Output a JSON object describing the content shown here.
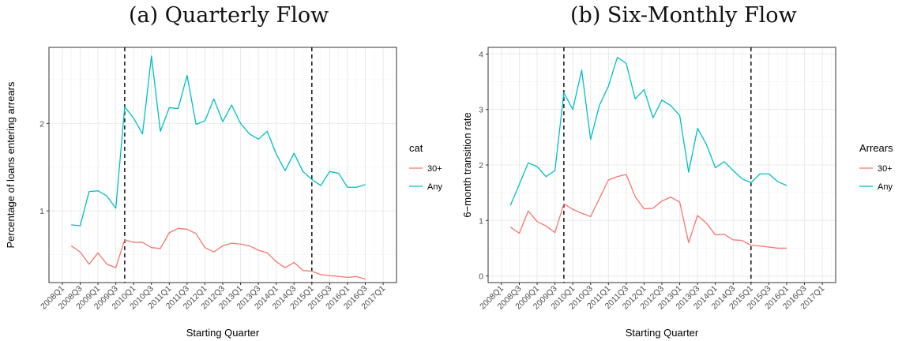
{
  "titles": {
    "a": "(a) Quarterly Flow",
    "b": "(b) Six-Monthly Flow"
  },
  "colors": {
    "30+": "#F8766D",
    "Any": "#00BFC4",
    "vline": "#000000",
    "grid_major": "#ebebeb",
    "grid_minor": "#f4f4f4"
  },
  "chart_data": [
    {
      "type": "line",
      "title": "(a) Quarterly Flow",
      "xlabel": "Starting Quarter",
      "ylabel": "Percentage of loans entering arrears",
      "x_ticks": [
        "2008Q1",
        "2008Q3",
        "2009Q1",
        "2009Q3",
        "2010Q1",
        "2010Q3",
        "2011Q1",
        "2011Q3",
        "2012Q1",
        "2012Q3",
        "2013Q1",
        "2013Q3",
        "2014Q1",
        "2014Q3",
        "2015Q1",
        "2015Q3",
        "2016Q1",
        "2016Q3",
        "2017Q1"
      ],
      "y_ticks": [
        1,
        2
      ],
      "ylim": [
        0.18,
        2.87
      ],
      "grid": true,
      "vlines": [
        "2009Q4",
        "2015Q1"
      ],
      "legend": {
        "title": "cat",
        "position": "right",
        "entries": [
          "30+",
          "Any"
        ]
      },
      "x": [
        "2008Q2",
        "2008Q3",
        "2008Q4",
        "2009Q1",
        "2009Q2",
        "2009Q3",
        "2009Q4",
        "2010Q1",
        "2010Q2",
        "2010Q3",
        "2010Q4",
        "2011Q1",
        "2011Q2",
        "2011Q3",
        "2011Q4",
        "2012Q1",
        "2012Q2",
        "2012Q3",
        "2012Q4",
        "2013Q1",
        "2013Q2",
        "2013Q3",
        "2013Q4",
        "2014Q1",
        "2014Q2",
        "2014Q3",
        "2014Q4",
        "2015Q1",
        "2015Q2",
        "2015Q3",
        "2015Q4",
        "2016Q1",
        "2016Q2",
        "2016Q3"
      ],
      "series": [
        {
          "name": "30+",
          "values": [
            0.6,
            0.53,
            0.39,
            0.52,
            0.39,
            0.35,
            0.67,
            0.64,
            0.64,
            0.58,
            0.57,
            0.75,
            0.8,
            0.79,
            0.74,
            0.58,
            0.53,
            0.6,
            0.63,
            0.62,
            0.6,
            0.55,
            0.52,
            0.42,
            0.35,
            0.41,
            0.32,
            0.31,
            0.27,
            0.26,
            0.25,
            0.24,
            0.25,
            0.22
          ]
        },
        {
          "name": "Any",
          "values": [
            0.84,
            0.83,
            1.22,
            1.23,
            1.17,
            1.03,
            2.19,
            2.06,
            1.88,
            2.77,
            1.91,
            2.18,
            2.17,
            2.55,
            1.99,
            2.03,
            2.28,
            2.02,
            2.21,
            2.0,
            1.88,
            1.82,
            1.91,
            1.65,
            1.46,
            1.66,
            1.45,
            1.36,
            1.29,
            1.45,
            1.43,
            1.27,
            1.27,
            1.3
          ]
        }
      ]
    },
    {
      "type": "line",
      "title": "(b) Six-Monthly Flow",
      "xlabel": "Starting Quarter",
      "ylabel": "6−month transition rate",
      "x_ticks": [
        "2008Q1",
        "2008Q3",
        "2009Q1",
        "2009Q3",
        "2010Q1",
        "2010Q3",
        "2011Q1",
        "2011Q3",
        "2012Q1",
        "2012Q3",
        "2013Q1",
        "2013Q3",
        "2014Q1",
        "2014Q3",
        "2015Q1",
        "2015Q3",
        "2016Q1",
        "2016Q3",
        "2017Q1"
      ],
      "y_ticks": [
        0,
        1,
        2,
        3,
        4
      ],
      "ylim": [
        -0.12,
        4.12
      ],
      "grid": true,
      "vlines": [
        "2009Q4",
        "2015Q1"
      ],
      "legend": {
        "title": "Arrears",
        "position": "right",
        "entries": [
          "30+",
          "Any"
        ]
      },
      "x": [
        "2008Q2",
        "2008Q3",
        "2008Q4",
        "2009Q1",
        "2009Q2",
        "2009Q3",
        "2009Q4",
        "2010Q1",
        "2010Q2",
        "2010Q3",
        "2010Q4",
        "2011Q1",
        "2011Q2",
        "2011Q3",
        "2011Q4",
        "2012Q1",
        "2012Q2",
        "2012Q3",
        "2012Q4",
        "2013Q1",
        "2013Q2",
        "2013Q3",
        "2013Q4",
        "2014Q1",
        "2014Q2",
        "2014Q3",
        "2014Q4",
        "2015Q1",
        "2015Q2",
        "2015Q3",
        "2015Q4",
        "2016Q1"
      ],
      "series": [
        {
          "name": "30+",
          "values": [
            0.88,
            0.77,
            1.17,
            0.98,
            0.9,
            0.78,
            1.3,
            1.2,
            1.13,
            1.07,
            1.4,
            1.73,
            1.79,
            1.83,
            1.43,
            1.21,
            1.22,
            1.35,
            1.42,
            1.33,
            0.6,
            1.09,
            0.95,
            0.74,
            0.75,
            0.65,
            0.64,
            0.55,
            0.54,
            0.52,
            0.5,
            0.5
          ]
        },
        {
          "name": "Any",
          "values": [
            1.27,
            1.65,
            2.04,
            1.97,
            1.79,
            1.9,
            3.3,
            3.0,
            3.71,
            2.46,
            3.08,
            3.42,
            3.94,
            3.83,
            3.19,
            3.36,
            2.85,
            3.17,
            3.07,
            2.89,
            1.87,
            2.66,
            2.37,
            1.95,
            2.06,
            1.9,
            1.75,
            1.68,
            1.84,
            1.84,
            1.7,
            1.63
          ]
        }
      ]
    }
  ]
}
